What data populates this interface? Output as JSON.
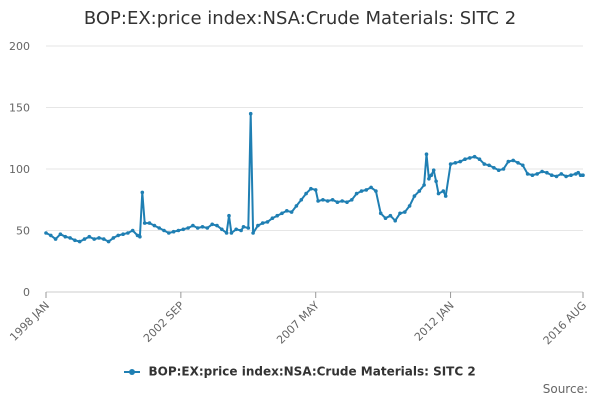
{
  "chart_data": {
    "type": "line",
    "title": "BOP:EX:price index:NSA:Crude Materials: SITC 2",
    "xlabel": "",
    "ylabel": "",
    "ylim": [
      0,
      200
    ],
    "yticks": [
      "0",
      "50",
      "100",
      "150",
      "200"
    ],
    "xlim": [
      "1998-01",
      "2016-08"
    ],
    "xticks": [
      "1998 JAN",
      "2002 SEP",
      "2007 MAY",
      "2012 JAN",
      "2016 AUG"
    ],
    "grid": "horizontal",
    "legend_position": "bottom",
    "series": [
      {
        "name": "BOP:EX:price index:NSA:Crude Materials: SITC 2",
        "color": "#1f7fb3",
        "points": [
          [
            "1998-01",
            48
          ],
          [
            "1998-03",
            46
          ],
          [
            "1998-05",
            43
          ],
          [
            "1998-07",
            47
          ],
          [
            "1998-09",
            45
          ],
          [
            "1998-11",
            44
          ],
          [
            "1999-01",
            42
          ],
          [
            "1999-03",
            41
          ],
          [
            "1999-05",
            43
          ],
          [
            "1999-07",
            45
          ],
          [
            "1999-09",
            43
          ],
          [
            "1999-11",
            44
          ],
          [
            "2000-01",
            43
          ],
          [
            "2000-03",
            41
          ],
          [
            "2000-05",
            44
          ],
          [
            "2000-07",
            46
          ],
          [
            "2000-09",
            47
          ],
          [
            "2000-11",
            48
          ],
          [
            "2001-01",
            50
          ],
          [
            "2001-03",
            46
          ],
          [
            "2001-04",
            45
          ],
          [
            "2001-05",
            81
          ],
          [
            "2001-06",
            56
          ],
          [
            "2001-08",
            56
          ],
          [
            "2001-10",
            54
          ],
          [
            "2001-12",
            52
          ],
          [
            "2002-02",
            50
          ],
          [
            "2002-04",
            48
          ],
          [
            "2002-06",
            49
          ],
          [
            "2002-08",
            50
          ],
          [
            "2002-10",
            51
          ],
          [
            "2002-12",
            52
          ],
          [
            "2003-02",
            54
          ],
          [
            "2003-04",
            52
          ],
          [
            "2003-06",
            53
          ],
          [
            "2003-08",
            52
          ],
          [
            "2003-10",
            55
          ],
          [
            "2003-12",
            54
          ],
          [
            "2004-02",
            51
          ],
          [
            "2004-04",
            48
          ],
          [
            "2004-05",
            62
          ],
          [
            "2004-06",
            48
          ],
          [
            "2004-08",
            51
          ],
          [
            "2004-10",
            50
          ],
          [
            "2004-11",
            53
          ],
          [
            "2005-01",
            52
          ],
          [
            "2005-02",
            145
          ],
          [
            "2005-03",
            48
          ],
          [
            "2005-05",
            54
          ],
          [
            "2005-07",
            56
          ],
          [
            "2005-09",
            57
          ],
          [
            "2005-11",
            60
          ],
          [
            "2006-01",
            62
          ],
          [
            "2006-03",
            64
          ],
          [
            "2006-05",
            66
          ],
          [
            "2006-07",
            65
          ],
          [
            "2006-09",
            70
          ],
          [
            "2006-11",
            75
          ],
          [
            "2007-01",
            80
          ],
          [
            "2007-03",
            84
          ],
          [
            "2007-05",
            83
          ],
          [
            "2007-06",
            74
          ],
          [
            "2007-08",
            75
          ],
          [
            "2007-10",
            74
          ],
          [
            "2007-12",
            75
          ],
          [
            "2008-02",
            73
          ],
          [
            "2008-04",
            74
          ],
          [
            "2008-06",
            73
          ],
          [
            "2008-08",
            75
          ],
          [
            "2008-10",
            80
          ],
          [
            "2008-12",
            82
          ],
          [
            "2009-02",
            83
          ],
          [
            "2009-04",
            85
          ],
          [
            "2009-06",
            82
          ],
          [
            "2009-08",
            64
          ],
          [
            "2009-10",
            60
          ],
          [
            "2009-12",
            62
          ],
          [
            "2010-02",
            58
          ],
          [
            "2010-04",
            64
          ],
          [
            "2010-06",
            65
          ],
          [
            "2010-08",
            70
          ],
          [
            "2010-10",
            78
          ],
          [
            "2010-12",
            82
          ],
          [
            "2011-02",
            87
          ],
          [
            "2011-03",
            112
          ],
          [
            "2011-04",
            92
          ],
          [
            "2011-05",
            95
          ],
          [
            "2011-06",
            99
          ],
          [
            "2011-07",
            90
          ],
          [
            "2011-08",
            80
          ],
          [
            "2011-10",
            82
          ],
          [
            "2011-11",
            78
          ],
          [
            "2012-01",
            104
          ],
          [
            "2012-03",
            105
          ],
          [
            "2012-05",
            106
          ],
          [
            "2012-07",
            108
          ],
          [
            "2012-09",
            109
          ],
          [
            "2012-11",
            110
          ],
          [
            "2013-01",
            108
          ],
          [
            "2013-03",
            104
          ],
          [
            "2013-05",
            103
          ],
          [
            "2013-07",
            101
          ],
          [
            "2013-09",
            99
          ],
          [
            "2013-11",
            100
          ],
          [
            "2014-01",
            106
          ],
          [
            "2014-03",
            107
          ],
          [
            "2014-05",
            105
          ],
          [
            "2014-07",
            103
          ],
          [
            "2014-09",
            96
          ],
          [
            "2014-11",
            95
          ],
          [
            "2015-01",
            96
          ],
          [
            "2015-03",
            98
          ],
          [
            "2015-05",
            97
          ],
          [
            "2015-07",
            95
          ],
          [
            "2015-09",
            94
          ],
          [
            "2015-11",
            96
          ],
          [
            "2016-01",
            94
          ],
          [
            "2016-03",
            95
          ],
          [
            "2016-05",
            96
          ],
          [
            "2016-06",
            97
          ],
          [
            "2016-07",
            95
          ],
          [
            "2016-08",
            95
          ]
        ]
      }
    ]
  },
  "source_label": "Source:"
}
